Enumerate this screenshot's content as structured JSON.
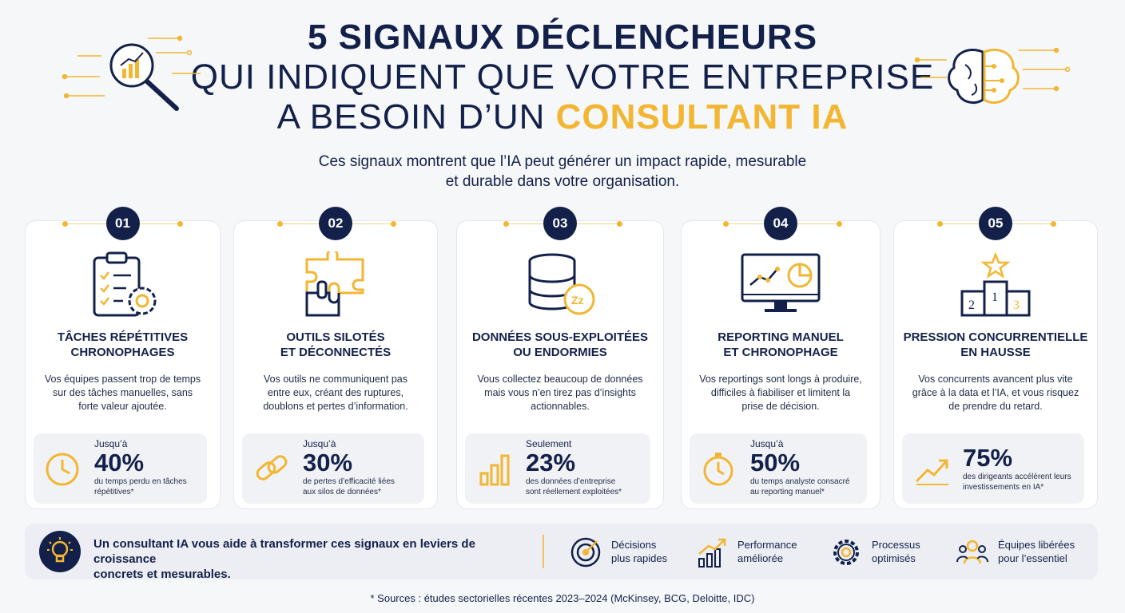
{
  "header": {
    "line1": "5 SIGNAUX DÉCLENCHEURS",
    "line2": "QUI INDIQUENT QUE VOTRE ENTREPRISE",
    "line3_prefix": "A BESOIN D’UN ",
    "line3_highlight": "CONSULTANT IA",
    "subtitle_line1": "Ces signaux montrent que l’IA peut générer un impact rapide, mesurable",
    "subtitle_line2": "et durable dans votre organisation."
  },
  "icons": {
    "header_left": "magnifier-chart-icon",
    "header_right": "brain-circuit-icon"
  },
  "colors": {
    "navy": "#13214a",
    "gold": "#f2b632",
    "card_bg": "#ffffff",
    "stat_bg": "#f1f2f6"
  },
  "cards": [
    {
      "number": "01",
      "title_line1": "TÂCHES RÉPÉTITIVES",
      "title_line2": "CHRONOPHAGES",
      "desc_line1": "Vos équipes passent trop de temps",
      "desc_line2": "sur des tâches manuelles, sans",
      "desc_line3": "forte valeur ajoutée.",
      "stat_pre": "Jusqu’à",
      "stat_value": "40%",
      "stat_desc_line1": "du temps perdu en tâches",
      "stat_desc_line2": "répétitives*",
      "icon": "clipboard-gear-icon",
      "stat_icon": "clock-icon"
    },
    {
      "number": "02",
      "title_line1": "OUTILS SILOTÉS",
      "title_line2": "ET DÉCONNECTÉS",
      "desc_line1": "Vos outils ne communiquent pas",
      "desc_line2": "entre eux, créant des ruptures,",
      "desc_line3": "doublons et pertes d’information.",
      "stat_pre": "Jusqu’à",
      "stat_value": "30%",
      "stat_desc_line1": "de pertes d’efficacité liées",
      "stat_desc_line2": "aux silos de données*",
      "icon": "puzzle-icon",
      "stat_icon": "link-icon"
    },
    {
      "number": "03",
      "title_line1": "DONNÉES SOUS-EXPLOITÉES",
      "title_line2": "OU ENDORMIES",
      "desc_line1": "Vous collectez beaucoup de données",
      "desc_line2": "mais vous n’en tirez pas d’insights",
      "desc_line3": "actionnables.",
      "stat_pre": "Seulement",
      "stat_value": "23%",
      "stat_desc_line1": "des données d’entreprise",
      "stat_desc_line2": "sont réellement exploitées*",
      "icon": "database-sleep-icon",
      "stat_icon": "bar-chart-icon"
    },
    {
      "number": "04",
      "title_line1": "REPORTING MANUEL",
      "title_line2": "ET CHRONOPHAGE",
      "desc_line1": "Vos reportings sont longs à produire,",
      "desc_line2": "difficiles à fiabiliser et limitent la",
      "desc_line3": "prise de décision.",
      "stat_pre": "Jusqu’à",
      "stat_value": "50%",
      "stat_desc_line1": "du temps analyste consacré",
      "stat_desc_line2": "au reporting manuel*",
      "icon": "monitor-chart-icon",
      "stat_icon": "stopwatch-icon"
    },
    {
      "number": "05",
      "title_line1": "PRESSION CONCURRENTIELLE",
      "title_line2": "EN HAUSSE",
      "desc_line1": "Vos concurrents avancent plus vite",
      "desc_line2": "grâce à la data et l’IA, et vous risquez",
      "desc_line3": "de prendre du retard.",
      "stat_pre": "",
      "stat_value": "75%",
      "stat_desc_line1": "des dirigeants accélèrent leurs",
      "stat_desc_line2": "investissements en IA*",
      "icon": "podium-star-icon",
      "stat_icon": "trend-up-icon",
      "podium": [
        "2",
        "1",
        "3"
      ]
    }
  ],
  "banner": {
    "icon": "lightbulb-icon",
    "text_line1": "Un consultant IA vous aide à transformer ces signaux en leviers de croissance",
    "text_line2": "concrets et mesurables.",
    "benefits": [
      {
        "line1": "Décisions",
        "line2": "plus rapides",
        "icon": "target-icon"
      },
      {
        "line1": "Performance",
        "line2": "améliorée",
        "icon": "growth-chart-icon"
      },
      {
        "line1": "Processus",
        "line2": "optimisés",
        "icon": "gear-icon"
      },
      {
        "line1": "Équipes libérées",
        "line2": "pour l’essentiel",
        "icon": "team-icon"
      }
    ]
  },
  "footnote": "* Sources : études sectorielles récentes 2023–2024 (McKinsey, BCG, Deloitte, IDC)"
}
